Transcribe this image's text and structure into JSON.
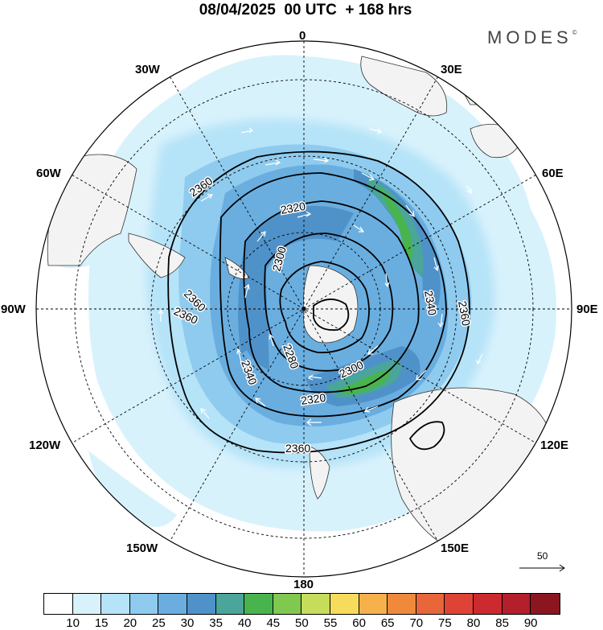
{
  "title": "08/04/2025  00 UTC  + 168 hrs",
  "brand": "MODES",
  "brand_mark": "©",
  "meridian_labels": {
    "m0": "0",
    "m30e": "30E",
    "m60e": "60E",
    "m90e": "90E",
    "m120e": "120E",
    "m150e": "150E",
    "m180": "180",
    "m150w": "150W",
    "m120w": "120W",
    "m90w": "90W",
    "m60w": "60W",
    "m30w": "30W"
  },
  "contour_labels": [
    "2360",
    "2320",
    "2300",
    "2280",
    "2360",
    "2340",
    "2360",
    "2300",
    "2320",
    "2340",
    "2360",
    "2360"
  ],
  "reference_vector": "50",
  "colorbar": {
    "colors": [
      "#ffffff",
      "#d8f2fc",
      "#b5e3f8",
      "#8fcbee",
      "#6aaee0",
      "#4f92c9",
      "#4aa59a",
      "#49b44e",
      "#80c850",
      "#c6dd5c",
      "#f7dc5c",
      "#f6b14b",
      "#ef8a3c",
      "#e8663a",
      "#df4336",
      "#cc2a2e",
      "#b31f2a",
      "#8c1620"
    ],
    "ticks": [
      "10",
      "15",
      "20",
      "25",
      "30",
      "35",
      "40",
      "45",
      "50",
      "55",
      "60",
      "65",
      "70",
      "75",
      "80",
      "85",
      "90"
    ]
  }
}
